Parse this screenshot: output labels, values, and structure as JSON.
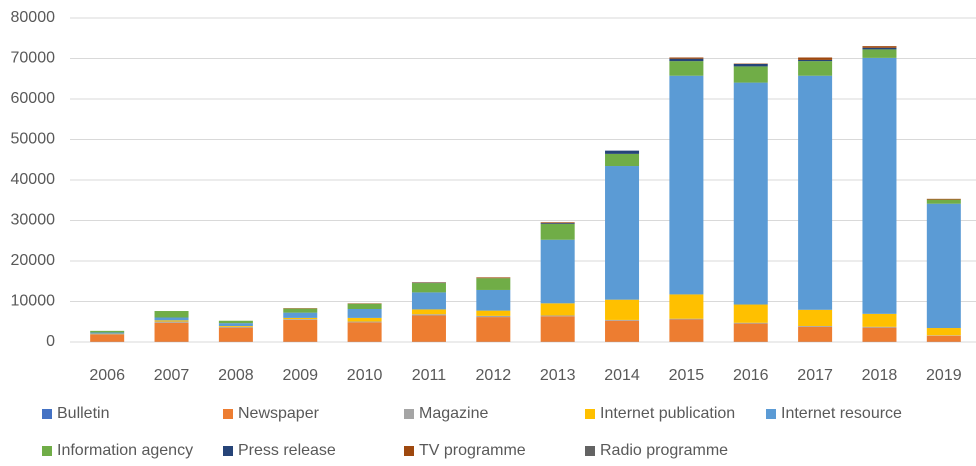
{
  "chart_data": {
    "type": "stacked_bar",
    "categories": [
      "2006",
      "2007",
      "2008",
      "2009",
      "2010",
      "2011",
      "2012",
      "2013",
      "2014",
      "2015",
      "2016",
      "2017",
      "2018",
      "2019"
    ],
    "series": [
      {
        "name": "Bulletin",
        "color": "#4472c4",
        "values": [
          50,
          50,
          50,
          50,
          50,
          50,
          50,
          50,
          50,
          50,
          50,
          50,
          50,
          50
        ]
      },
      {
        "name": "Newspaper",
        "color": "#ed7d31",
        "values": [
          1800,
          4700,
          3500,
          5400,
          4800,
          6500,
          6100,
          6300,
          5200,
          5500,
          4500,
          3700,
          3500,
          1500
        ]
      },
      {
        "name": "Magazine",
        "color": "#a5a5a5",
        "values": [
          100,
          300,
          200,
          200,
          200,
          300,
          300,
          200,
          200,
          200,
          200,
          200,
          200,
          100
        ]
      },
      {
        "name": "Internet publication",
        "color": "#ffc000",
        "values": [
          100,
          300,
          200,
          300,
          900,
          1200,
          1300,
          3000,
          5000,
          6000,
          4500,
          4000,
          3200,
          1800
        ]
      },
      {
        "name": "Internet resource",
        "color": "#5b9bd5",
        "values": [
          300,
          700,
          700,
          1300,
          2200,
          4200,
          5100,
          15700,
          33000,
          54000,
          54800,
          57800,
          63200,
          30700
        ]
      },
      {
        "name": "Information agency",
        "color": "#70ad47",
        "values": [
          400,
          1600,
          600,
          1000,
          1300,
          2300,
          2900,
          3900,
          3000,
          3600,
          4000,
          3600,
          2100,
          1000
        ]
      },
      {
        "name": "Press release",
        "color": "#264478",
        "values": [
          0,
          0,
          0,
          0,
          0,
          100,
          0,
          200,
          800,
          600,
          600,
          300,
          400,
          0
        ]
      },
      {
        "name": "TV programme",
        "color": "#9e480e",
        "values": [
          0,
          0,
          0,
          100,
          100,
          100,
          200,
          200,
          0,
          300,
          100,
          600,
          400,
          200
        ]
      },
      {
        "name": "Radio programme",
        "color": "#636363",
        "values": [
          0,
          0,
          0,
          0,
          0,
          0,
          0,
          0,
          0,
          0,
          0,
          0,
          0,
          0
        ]
      }
    ],
    "ylim": [
      0,
      80000
    ],
    "yticks": [
      0,
      10000,
      20000,
      30000,
      40000,
      50000,
      60000,
      70000,
      80000
    ],
    "grid": true
  }
}
